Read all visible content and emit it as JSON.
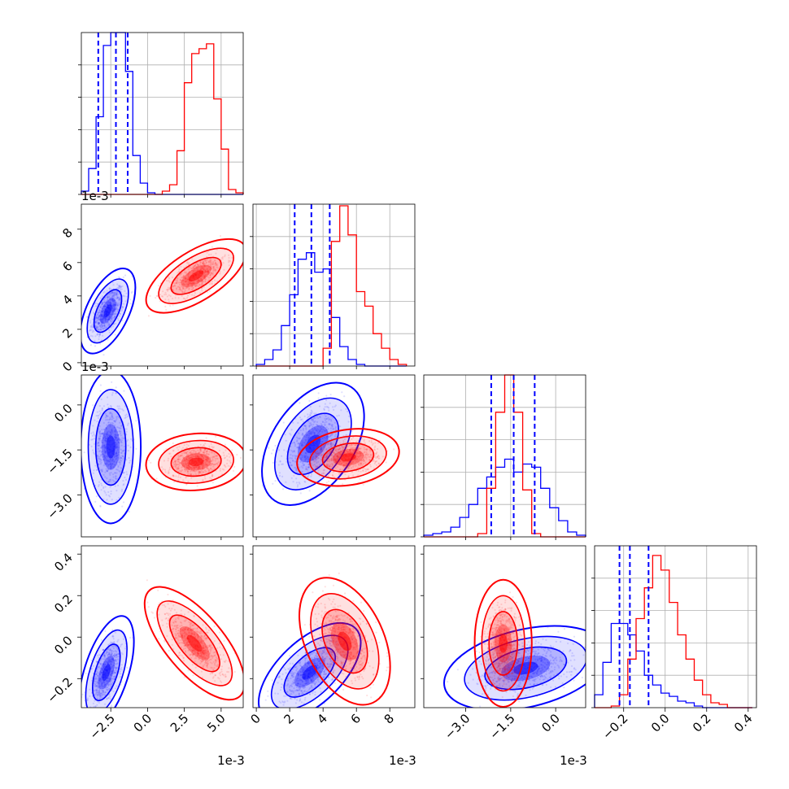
{
  "chart_data": {
    "type": "corner",
    "series": [
      {
        "name": "",
        "color": "#0000ff",
        "quantiles_dashed": true
      },
      {
        "name": "",
        "color": "#ff0000"
      }
    ],
    "parameters": [
      {
        "scale": "1e-3",
        "range": [
          -4.5,
          6.5
        ],
        "ticks": [
          -2.5,
          0.0,
          2.5,
          5.0
        ],
        "ticklabels": [
          "−2.5",
          "0.0",
          "2.5",
          "5.0"
        ]
      },
      {
        "scale": "1e-3",
        "range": [
          -0.2,
          9.5
        ],
        "ticks": [
          0,
          2,
          4,
          6,
          8
        ],
        "ticklabels": [
          "0",
          "2",
          "4",
          "6",
          "8"
        ]
      },
      {
        "scale": "1e-3",
        "range": [
          -4.4,
          1.0
        ],
        "ticks": [
          -3.0,
          -1.5,
          0.0
        ],
        "ticklabels": [
          "−3.0",
          "−1.5",
          "0.0"
        ]
      },
      {
        "scale": "",
        "range": [
          -0.34,
          0.44
        ],
        "ticks": [
          -0.2,
          0.0,
          0.2,
          0.4
        ],
        "ticklabels": [
          "−0.2",
          "0.0",
          "0.2",
          "0.4"
        ]
      }
    ],
    "marginals": [
      {
        "bin_edges": [
          -4.5,
          -4.0,
          -3.5,
          -3.0,
          -2.5,
          -2.0,
          -1.5,
          -1.0,
          -0.5,
          0.0,
          0.5,
          1.0,
          1.5,
          2.0,
          2.5,
          3.0,
          3.5,
          4.0,
          4.5,
          5.0,
          5.5,
          6.0,
          6.5
        ],
        "blue": [
          0.02,
          0.16,
          0.48,
          0.92,
          1.0,
          1.0,
          0.76,
          0.24,
          0.07,
          0.01,
          0,
          0,
          0,
          0,
          0,
          0,
          0,
          0,
          0,
          0,
          0,
          0
        ],
        "red": [
          0,
          0,
          0,
          0,
          0,
          0,
          0,
          0,
          0,
          0,
          0,
          0.02,
          0.06,
          0.27,
          0.69,
          0.87,
          0.9,
          0.93,
          0.59,
          0.28,
          0.03,
          0.01
        ],
        "blue_quantiles": [
          -3.35,
          -2.15,
          -1.35
        ]
      },
      {
        "bin_edges": [
          0.0,
          0.5,
          1.0,
          1.5,
          2.0,
          2.5,
          3.0,
          3.5,
          4.0,
          4.5,
          5.0,
          5.5,
          6.0,
          6.5,
          7.0,
          7.5,
          8.0,
          8.5,
          9.0
        ],
        "blue": [
          0.01,
          0.04,
          0.1,
          0.25,
          0.44,
          0.66,
          0.7,
          0.58,
          0.6,
          0.3,
          0.12,
          0.04,
          0.01,
          0,
          0,
          0,
          0,
          0
        ],
        "red": [
          0,
          0,
          0,
          0,
          0,
          0,
          0,
          0,
          0.11,
          0.77,
          0.99,
          0.81,
          0.46,
          0.37,
          0.2,
          0.11,
          0.04,
          0.01
        ],
        "blue_quantiles": [
          2.3,
          3.3,
          4.4
        ]
      },
      {
        "bin_edges": [
          -4.4,
          -4.1,
          -3.8,
          -3.5,
          -3.2,
          -2.9,
          -2.6,
          -2.3,
          -2.0,
          -1.7,
          -1.4,
          -1.1,
          -0.8,
          -0.5,
          -0.2,
          0.1,
          0.4,
          0.7,
          1.0
        ],
        "blue": [
          0.01,
          0.02,
          0.03,
          0.06,
          0.12,
          0.2,
          0.3,
          0.37,
          0.43,
          0.48,
          0.4,
          0.45,
          0.43,
          0.3,
          0.18,
          0.1,
          0.03,
          0.01
        ],
        "red": [
          0,
          0,
          0,
          0,
          0,
          0,
          0.02,
          0.3,
          0.77,
          1.0,
          0.77,
          0.29,
          0.02,
          0,
          0,
          0,
          0,
          0
        ],
        "blue_quantiles": [
          -2.15,
          -1.4,
          -0.7
        ]
      },
      {
        "bin_edges": [
          -0.34,
          -0.3,
          -0.26,
          -0.22,
          -0.18,
          -0.14,
          -0.1,
          -0.06,
          -0.02,
          0.02,
          0.06,
          0.1,
          0.14,
          0.18,
          0.22,
          0.26,
          0.3,
          0.34,
          0.38,
          0.42
        ],
        "blue": [
          0.08,
          0.28,
          0.52,
          0.52,
          0.45,
          0.35,
          0.2,
          0.14,
          0.09,
          0.07,
          0.04,
          0.03,
          0.01,
          0,
          0,
          0,
          0,
          0,
          0
        ],
        "red": [
          0,
          0,
          0.01,
          0.08,
          0.3,
          0.55,
          0.74,
          0.94,
          0.85,
          0.65,
          0.45,
          0.3,
          0.17,
          0.08,
          0.03,
          0.02,
          0,
          0,
          0
        ],
        "blue_quantiles": [
          -0.22,
          -0.17,
          -0.08
        ]
      }
    ],
    "joint_distributions": [
      {
        "pair": [
          0,
          1
        ],
        "blue": {
          "mean": [
            -2.7,
            3.1
          ],
          "sd": [
            0.55,
            0.75
          ],
          "rho": 0.55
        },
        "red": {
          "mean": [
            3.3,
            5.2
          ],
          "sd": [
            1.0,
            0.65
          ],
          "rho": 0.65
        }
      },
      {
        "pair": [
          0,
          2
        ],
        "blue": {
          "mean": [
            -2.5,
            -1.4
          ],
          "sd": [
            0.6,
            0.75
          ],
          "rho": 0.0
        },
        "red": {
          "mean": [
            3.3,
            -1.9
          ],
          "sd": [
            1.0,
            0.28
          ],
          "rho": 0.1
        }
      },
      {
        "pair": [
          1,
          2
        ],
        "blue": {
          "mean": [
            3.4,
            -1.3
          ],
          "sd": [
            0.9,
            0.6
          ],
          "rho": 0.45
        },
        "red": {
          "mean": [
            5.5,
            -1.75
          ],
          "sd": [
            0.9,
            0.28
          ],
          "rho": 0.2
        }
      },
      {
        "pair": [
          0,
          3
        ],
        "blue": {
          "mean": [
            -2.8,
            -0.17
          ],
          "sd": [
            0.55,
            0.08
          ],
          "rho": 0.55
        },
        "red": {
          "mean": [
            3.2,
            -0.03
          ],
          "sd": [
            1.0,
            0.08
          ],
          "rho": -0.7
        }
      },
      {
        "pair": [
          1,
          3
        ],
        "blue": {
          "mean": [
            3.2,
            -0.17
          ],
          "sd": [
            0.9,
            0.07
          ],
          "rho": 0.6
        },
        "red": {
          "mean": [
            5.3,
            -0.02
          ],
          "sd": [
            0.8,
            0.09
          ],
          "rho": -0.4
        }
      },
      {
        "pair": [
          2,
          3
        ],
        "blue": {
          "mean": [
            -1.0,
            -0.15
          ],
          "sd": [
            0.8,
            0.06
          ],
          "rho": 0.35
        },
        "red": {
          "mean": [
            -1.75,
            -0.03
          ],
          "sd": [
            0.28,
            0.09
          ],
          "rho": 0.0
        }
      }
    ],
    "grid": true
  }
}
